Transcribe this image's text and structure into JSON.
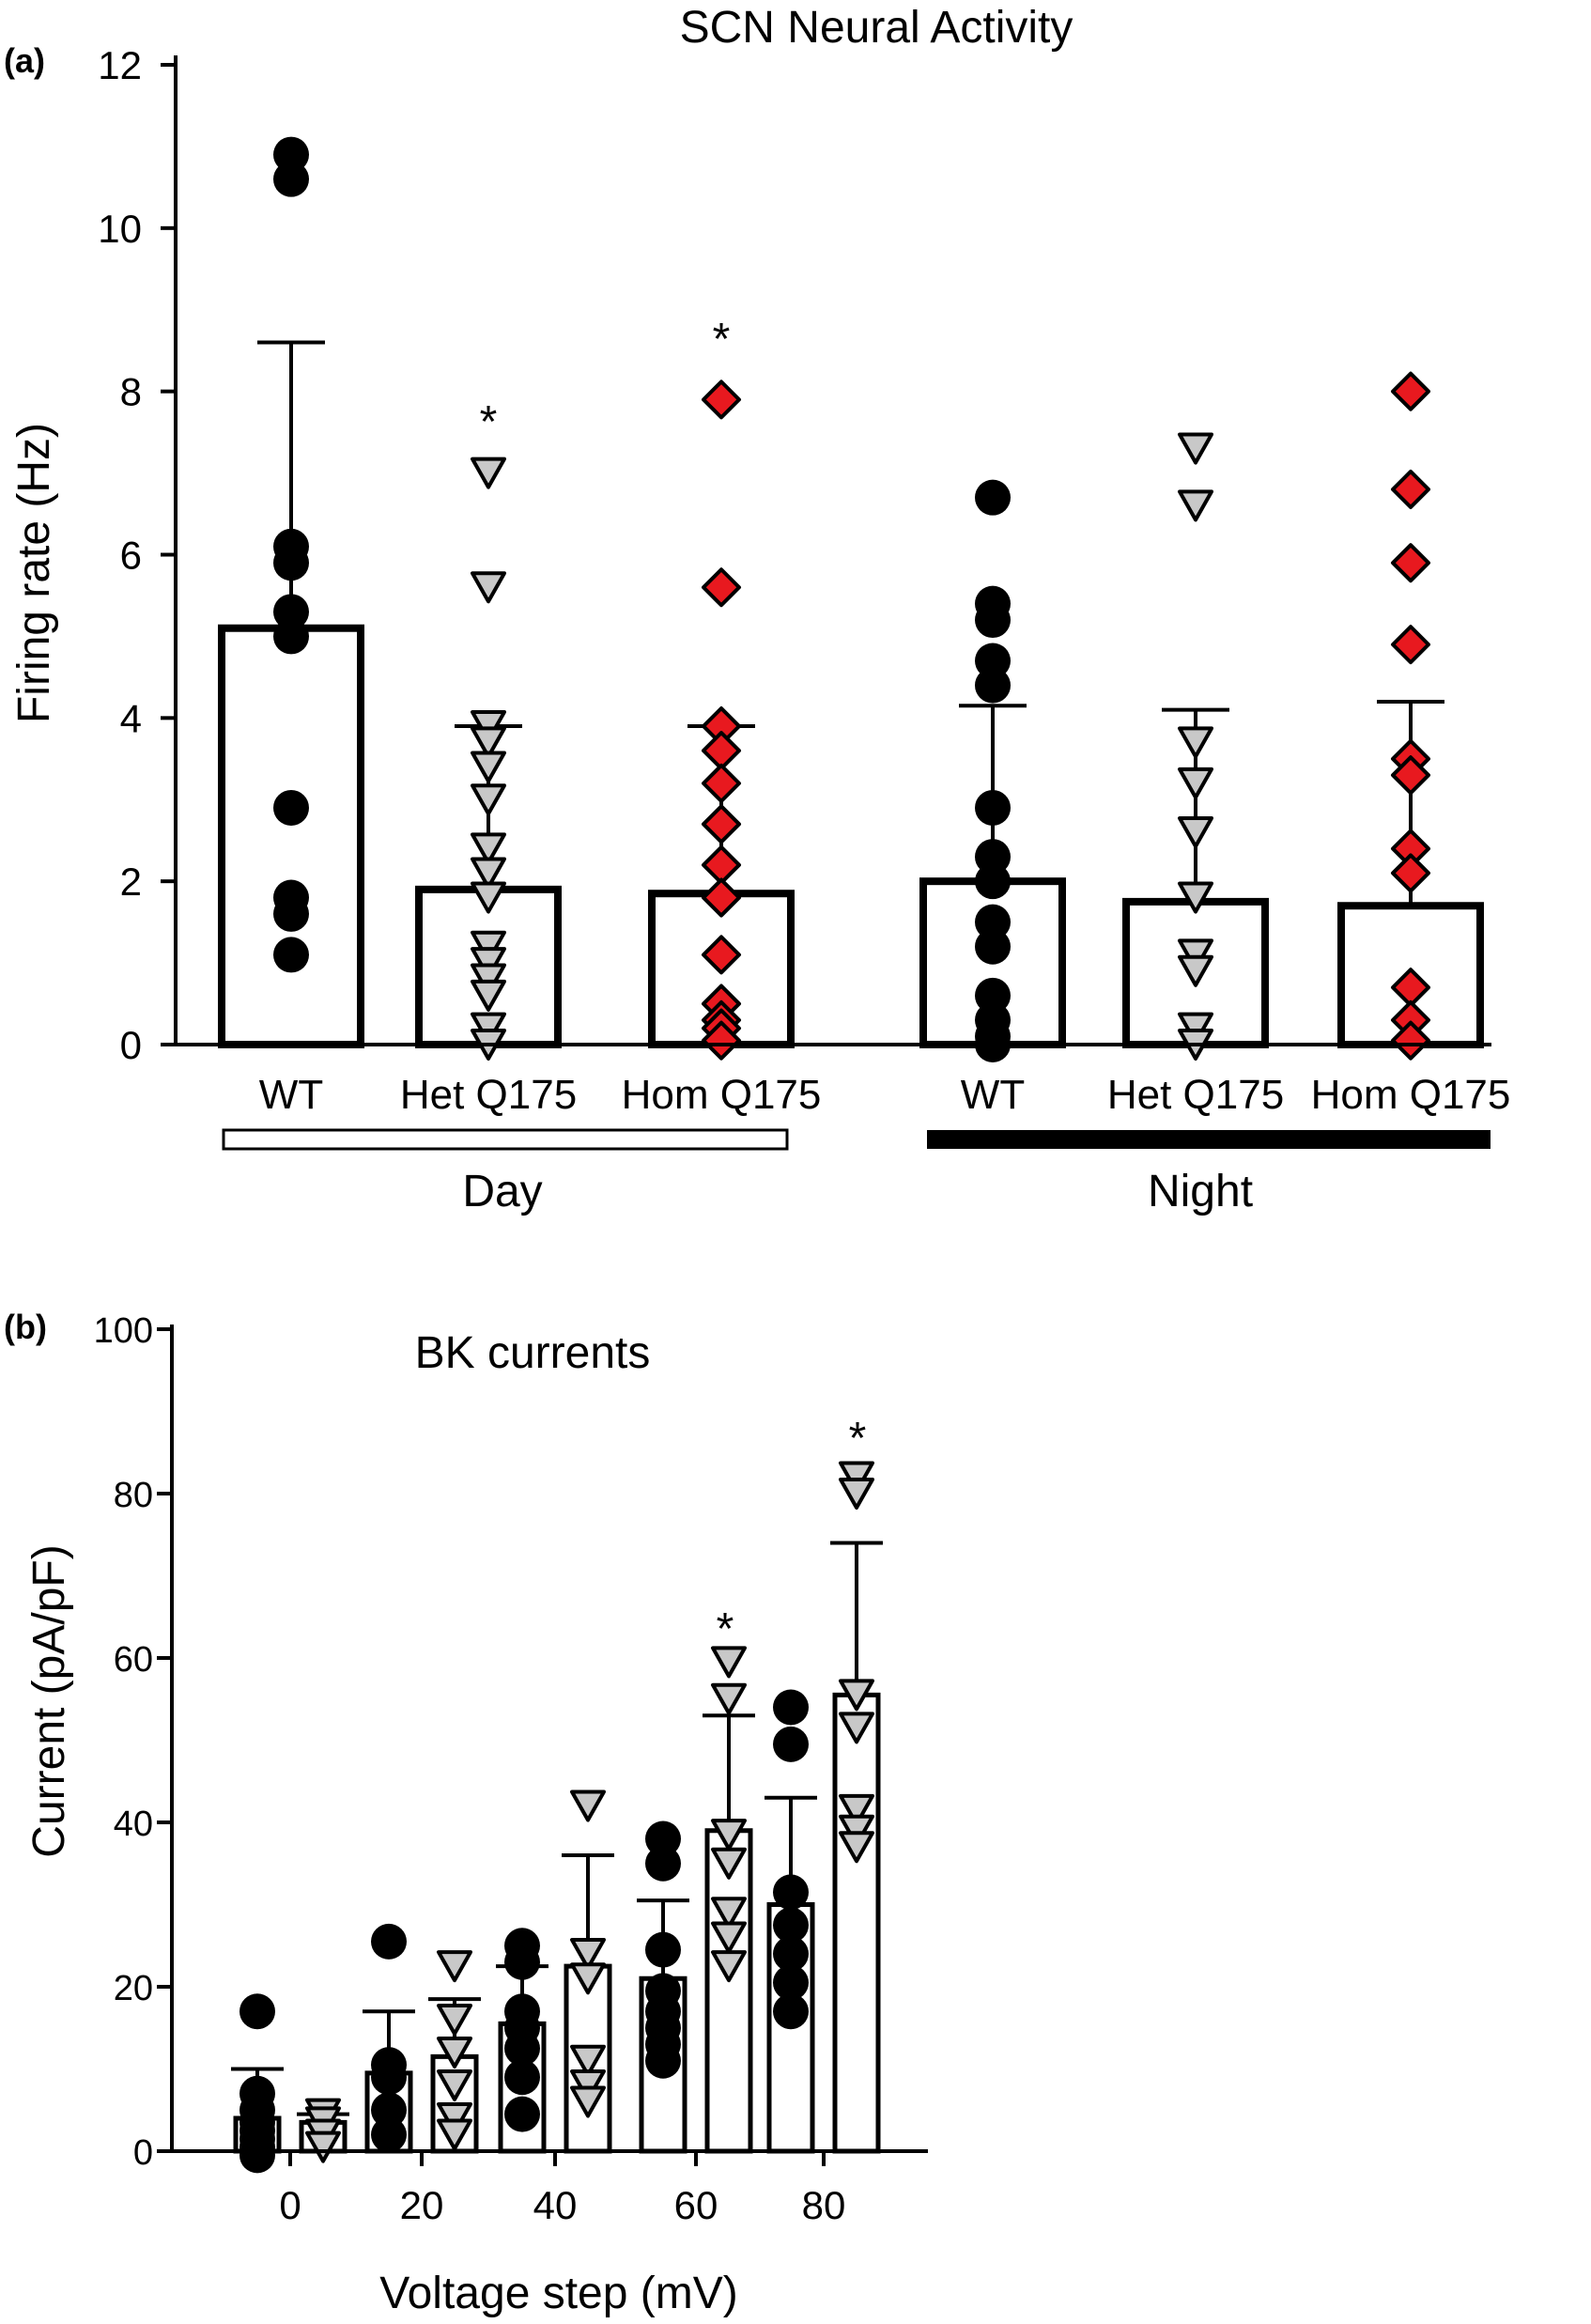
{
  "panels": [
    {
      "panel_label": "(a)",
      "chart_data": {
        "type": "bar",
        "title": "SCN Neural Activity",
        "xlabel": "",
        "ylabel": "Firing rate (Hz)",
        "ylim": [
          0,
          12
        ],
        "yticks": [
          0,
          2,
          4,
          6,
          8,
          10,
          12
        ],
        "categories": [
          "WT",
          "Het Q175",
          "Hom Q175",
          "WT",
          "Het Q175",
          "Hom Q175"
        ],
        "groups": [
          {
            "label": "Day",
            "bar_style": "open",
            "categories": [
              0,
              1,
              2
            ]
          },
          {
            "label": "Night",
            "bar_style": "filled",
            "categories": [
              3,
              4,
              5
            ]
          }
        ],
        "series": [
          {
            "category": "WT",
            "group": "Day",
            "mean": 5.1,
            "error_upper": 8.6,
            "marker": "circle",
            "color": "#000000",
            "points": [
              10.9,
              10.6,
              6.1,
              5.9,
              5.3,
              5.0,
              2.9,
              1.8,
              1.6,
              1.1
            ],
            "significant": false
          },
          {
            "category": "Het Q175",
            "group": "Day",
            "mean": 1.9,
            "error_upper": 3.9,
            "marker": "triangle-down",
            "color": "#c8c8c8",
            "points": [
              7.0,
              5.6,
              3.9,
              3.7,
              3.4,
              3.0,
              2.4,
              2.1,
              1.8,
              1.2,
              1.0,
              0.8,
              0.6,
              0.2,
              0.0
            ],
            "significant": true
          },
          {
            "category": "Hom Q175",
            "group": "Day",
            "mean": 1.85,
            "error_upper": 3.9,
            "marker": "diamond",
            "color": "#e8191f",
            "points": [
              7.9,
              5.6,
              3.9,
              3.6,
              3.2,
              2.7,
              2.2,
              1.8,
              1.1,
              0.5,
              0.3,
              0.2,
              0.05
            ],
            "significant": true
          },
          {
            "category": "WT",
            "group": "Night",
            "mean": 2.0,
            "error_upper": 4.15,
            "marker": "circle",
            "color": "#000000",
            "points": [
              6.7,
              5.4,
              5.2,
              4.7,
              4.4,
              2.9,
              2.3,
              2.0,
              1.5,
              1.2,
              0.6,
              0.3,
              0.1,
              0.0
            ],
            "significant": false
          },
          {
            "category": "Het Q175",
            "group": "Night",
            "mean": 1.75,
            "error_upper": 4.1,
            "marker": "triangle-down",
            "color": "#c8c8c8",
            "points": [
              7.3,
              6.6,
              3.7,
              3.2,
              2.6,
              1.8,
              1.1,
              0.9,
              0.2,
              0.0
            ],
            "significant": false
          },
          {
            "category": "Hom Q175",
            "group": "Night",
            "mean": 1.7,
            "error_upper": 4.2,
            "marker": "diamond",
            "color": "#e8191f",
            "points": [
              8.0,
              6.8,
              5.9,
              4.9,
              3.5,
              3.3,
              2.4,
              2.1,
              0.7,
              0.3,
              0.05
            ],
            "significant": false
          }
        ],
        "annotations": [
          "*",
          "*"
        ]
      }
    },
    {
      "panel_label": "(b)",
      "chart_data": {
        "type": "bar",
        "title": "BK currents",
        "xlabel": "Voltage step (mV)",
        "ylabel": "Current (pA/pF)",
        "ylim": [
          0,
          100
        ],
        "yticks": [
          0,
          20,
          40,
          60,
          80,
          100
        ],
        "categories": [
          "0",
          "20",
          "40",
          "60",
          "80"
        ],
        "series": [
          {
            "name": "",
            "marker": "circle",
            "color": "#000000",
            "values": [
              4.0,
              9.5,
              15.5,
              21.0,
              30.0
            ],
            "error_upper": [
              10.0,
              17.0,
              22.5,
              30.5,
              43.0
            ],
            "points": [
              [
                17.0,
                7.0,
                5.0,
                3.5,
                2.5,
                1.5,
                0.5,
                -0.5
              ],
              [
                25.5,
                10.5,
                9.0,
                5.0,
                2.0
              ],
              [
                25.0,
                23.0,
                17.0,
                15.0,
                12.5,
                9.0,
                4.5
              ],
              [
                38.0,
                35.0,
                24.5,
                19.5,
                17.0,
                15.0,
                13.0,
                11.0
              ],
              [
                54.0,
                49.5,
                31.5,
                27.5,
                24.0,
                20.5,
                17.0
              ]
            ]
          },
          {
            "name": "",
            "marker": "triangle-down",
            "color": "#c8c8c8",
            "values": [
              3.5,
              11.5,
              22.5,
              39.0,
              55.5
            ],
            "error_upper": [
              4.5,
              18.5,
              36.0,
              53.0,
              74.0
            ],
            "points": [
              [
                4.5,
                3.5,
                2.0,
                0.5
              ],
              [
                22.5,
                16.0,
                12.0,
                8.0,
                4.0,
                2.0
              ],
              [
                42.0,
                24.0,
                21.0,
                11.0,
                8.0,
                6.0
              ],
              [
                59.5,
                55.0,
                38.5,
                35.0,
                29.0,
                26.0,
                22.5
              ],
              [
                82.0,
                80.0,
                55.5,
                51.5,
                41.5,
                39.0,
                37.0
              ]
            ]
          }
        ],
        "annotations": [
          "*",
          "*"
        ]
      }
    }
  ]
}
